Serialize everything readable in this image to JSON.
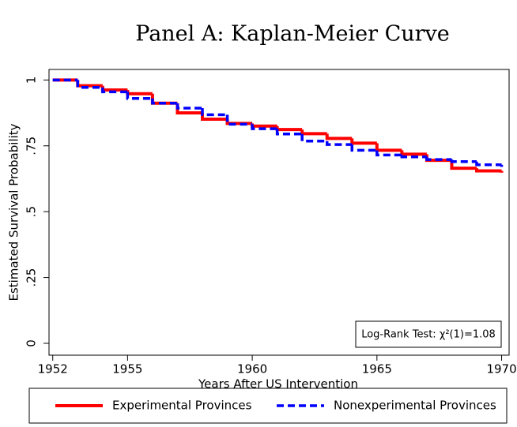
{
  "chart_data": {
    "type": "step",
    "title": "Panel A: Kaplan-Meier Curve",
    "xlabel": "Years After US Intervention",
    "ylabel": "Estimated Survival Probability",
    "x": [
      1952,
      1953,
      1954,
      1955,
      1956,
      1957,
      1958,
      1959,
      1960,
      1961,
      1962,
      1963,
      1964,
      1965,
      1966,
      1967,
      1968,
      1969,
      1970
    ],
    "series": [
      {
        "name": "Experimental Provinces",
        "color": "#ff0000",
        "dash": "solid",
        "values": [
          1.0,
          0.978,
          0.962,
          0.948,
          0.912,
          0.875,
          0.851,
          0.835,
          0.825,
          0.812,
          0.796,
          0.778,
          0.76,
          0.733,
          0.718,
          0.695,
          0.665,
          0.655,
          0.648
        ]
      },
      {
        "name": "Nonexperimental Provinces",
        "color": "#0000ff",
        "dash": "dashed",
        "values": [
          1.0,
          0.972,
          0.955,
          0.93,
          0.912,
          0.893,
          0.868,
          0.832,
          0.815,
          0.795,
          0.768,
          0.755,
          0.733,
          0.715,
          0.708,
          0.698,
          0.69,
          0.678,
          0.67
        ]
      }
    ],
    "xlim": [
      1951.85,
      1970.3
    ],
    "ylim": [
      -0.045,
      1.04
    ],
    "xticks": [
      1952,
      1955,
      1960,
      1965,
      1970
    ],
    "yticks": [
      0,
      {
        "value": 0.25,
        "label": ".25"
      },
      {
        "value": 0.5,
        "label": ".5"
      },
      {
        "value": 0.75,
        "label": ".75"
      },
      1
    ],
    "annotation": "Log-Rank Test: χ²(1)=1.08",
    "legend": "bottom",
    "grid": false
  }
}
